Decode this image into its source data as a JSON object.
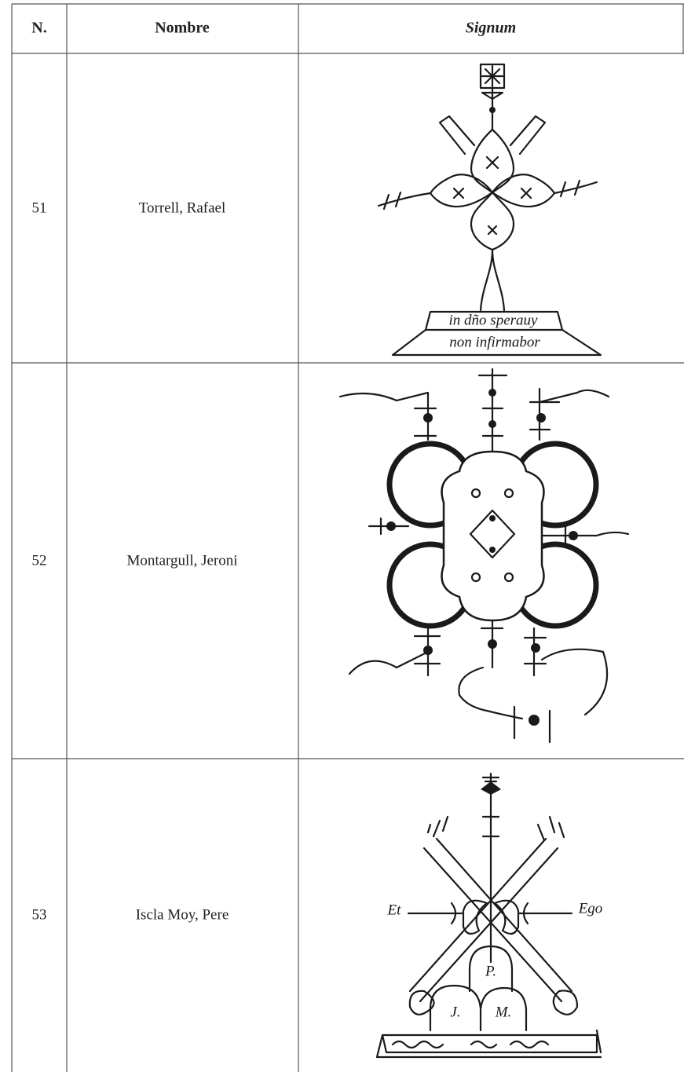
{
  "table": {
    "header": [
      "N.",
      "Nombre",
      "Signum"
    ],
    "rows": [
      {
        "number": "51",
        "name": "Torrell, Rafael",
        "inscriptions": [
          "in dño sperauy",
          "non infirmabor"
        ]
      },
      {
        "number": "52",
        "name": "Montargull, Jeroni",
        "inscriptions": []
      },
      {
        "number": "53",
        "name": "Iscla Moy, Pere",
        "inscriptions": [
          "Et",
          "Ego",
          "P.",
          "J.",
          "M."
        ]
      }
    ]
  }
}
